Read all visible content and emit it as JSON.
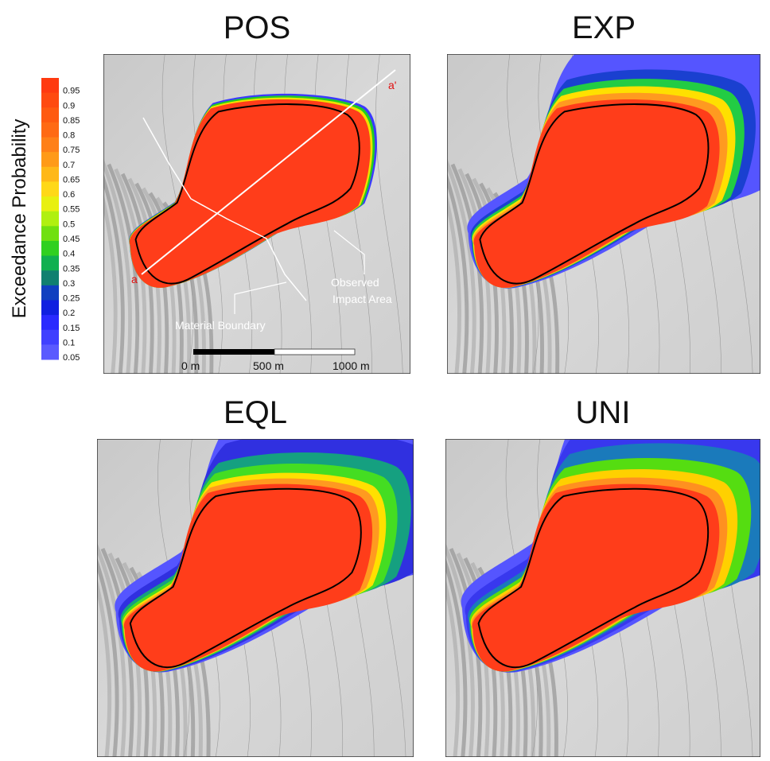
{
  "panels": [
    {
      "title": "POS"
    },
    {
      "title": "EXP"
    },
    {
      "title": "EQL"
    },
    {
      "title": "UNI"
    }
  ],
  "colorbar": {
    "label": "Exceedance Probability",
    "ticks": [
      0.95,
      0.9,
      0.85,
      0.8,
      0.75,
      0.7,
      0.65,
      0.6,
      0.55,
      0.5,
      0.45,
      0.4,
      0.35,
      0.3,
      0.25,
      0.2,
      0.15,
      0.1,
      0.05
    ]
  },
  "annotations": {
    "a": "a",
    "a_prime": "a'",
    "observed": "Observed",
    "impact_area": "Impact Area",
    "material_boundary": "Material Boundary"
  },
  "scale_bar": {
    "labels": [
      "0 m",
      "500 m",
      "1000 m"
    ]
  }
}
